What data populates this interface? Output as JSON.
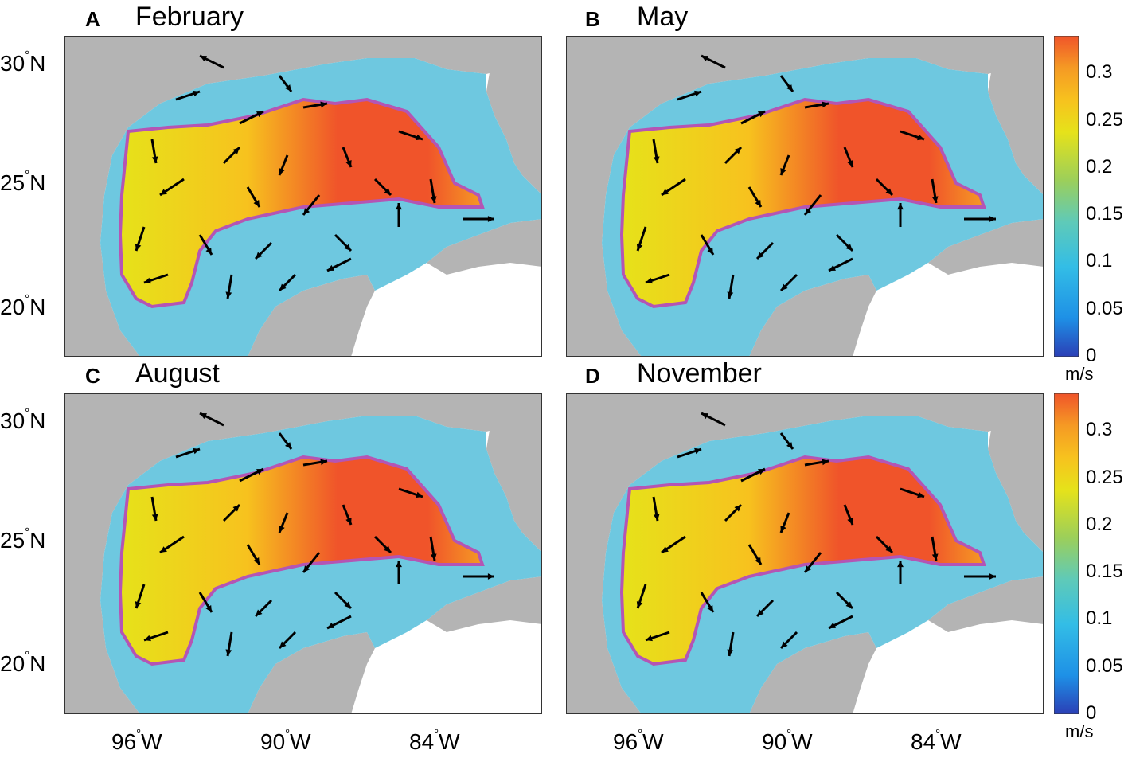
{
  "panels": [
    {
      "letter": "A",
      "month": "February"
    },
    {
      "letter": "B",
      "month": "May"
    },
    {
      "letter": "C",
      "month": "August"
    },
    {
      "letter": "D",
      "month": "November"
    }
  ],
  "lat_ticks": [
    {
      "value": "30",
      "hemi": "N"
    },
    {
      "value": "25",
      "hemi": "N"
    },
    {
      "value": "20",
      "hemi": "N"
    }
  ],
  "lon_ticks": [
    {
      "value": "96",
      "hemi": "W"
    },
    {
      "value": "90",
      "hemi": "W"
    },
    {
      "value": "84",
      "hemi": "W"
    }
  ],
  "colorbar": {
    "ticks": [
      "0.3",
      "0.25",
      "0.2",
      "0.15",
      "0.1",
      "0.05",
      "0"
    ],
    "tick_values": [
      0.3,
      0.25,
      0.2,
      0.15,
      0.1,
      0.05,
      0
    ],
    "range": [
      0,
      0.34
    ],
    "unit": "m/s",
    "colors": [
      "#2b3fb6",
      "#1e90e6",
      "#33bde6",
      "#5fcab8",
      "#9ccf5a",
      "#e6e21a",
      "#f7c21e",
      "#f59a24",
      "#f0542a"
    ]
  },
  "map_colors": {
    "land": "#b4b4b4",
    "coast_buffer": "#ffffff",
    "contour": "#b455b4",
    "arrow": "#000000"
  }
}
